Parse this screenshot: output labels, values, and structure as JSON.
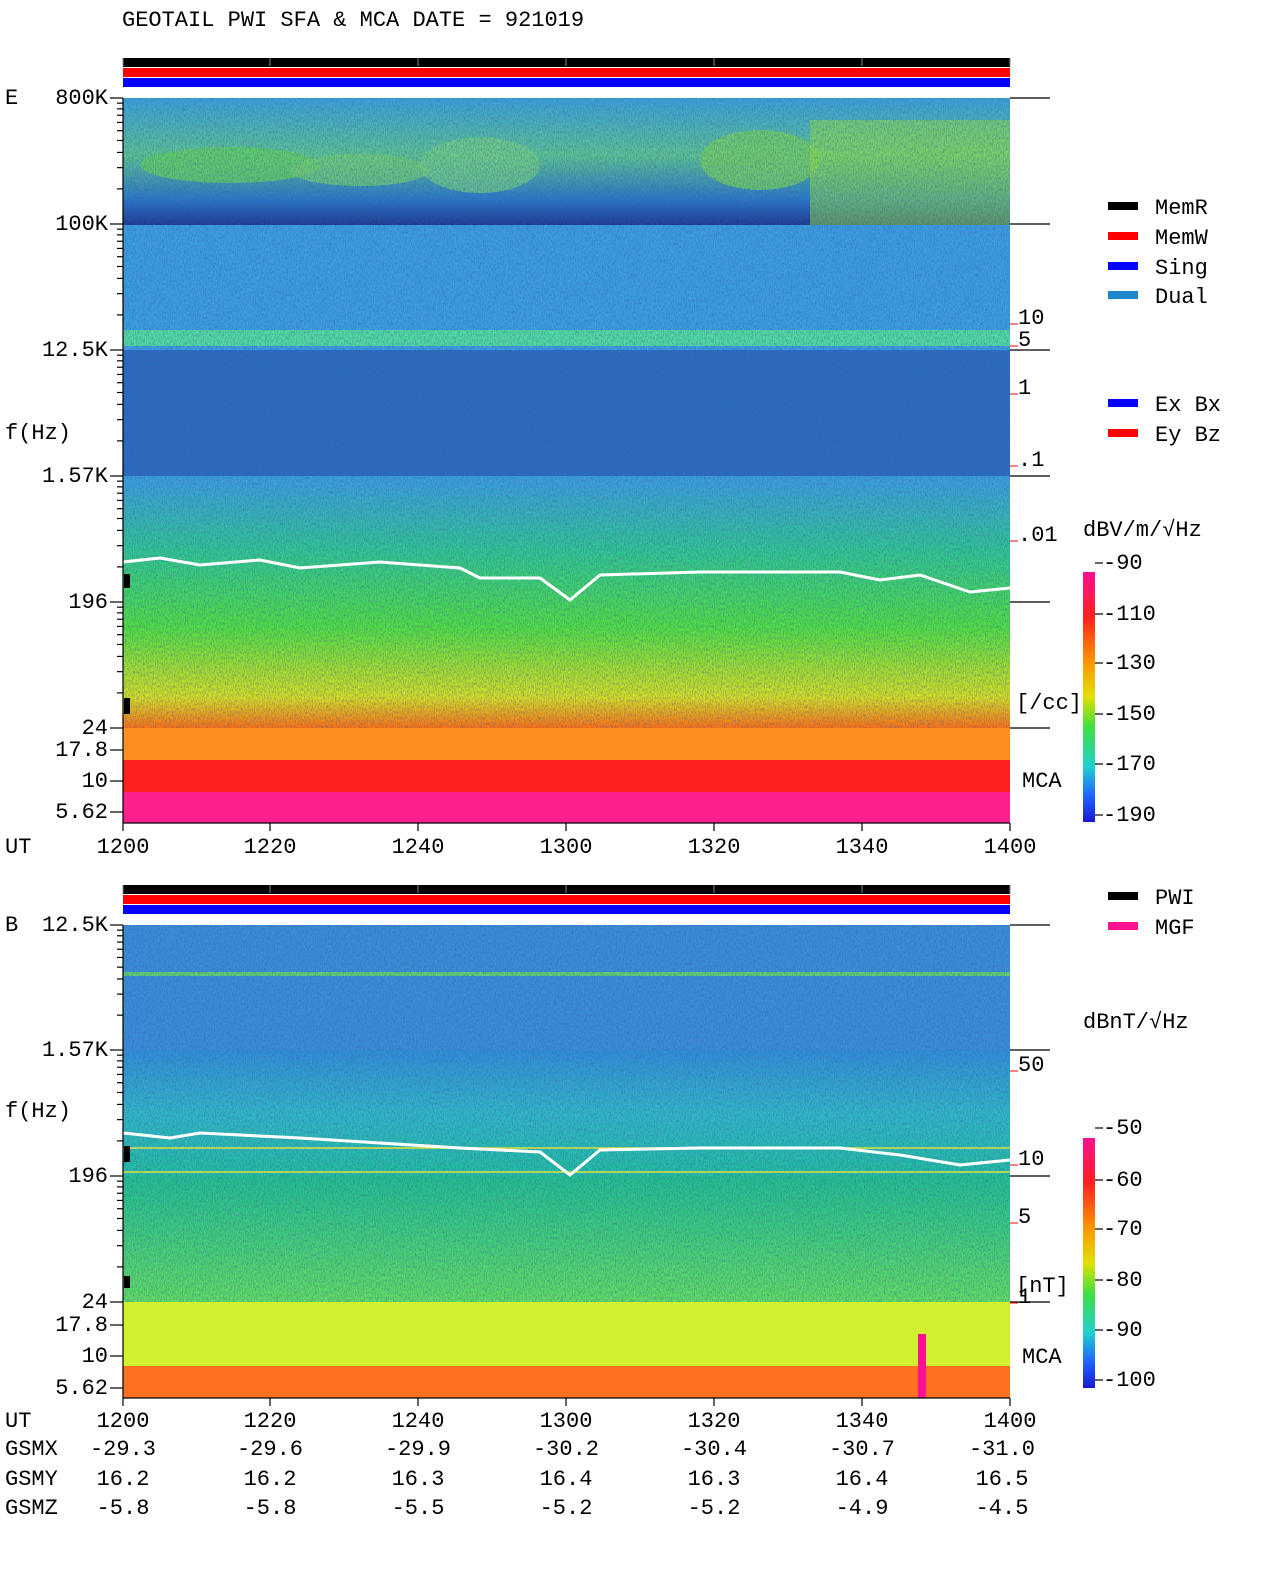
{
  "header": {
    "title": "GEOTAIL  PWI SFA & MCA   DATE = 921019"
  },
  "panels": [
    {
      "label": "E",
      "y_axis_label": "f(Hz)",
      "freq_ticks": [
        "800K",
        "100K",
        "12.5K",
        "1.57K",
        "196",
        "24",
        "17.8",
        "10",
        "5.62"
      ],
      "right_ticks": [
        "10",
        "5",
        "1",
        ".1",
        ".01"
      ],
      "right_unit": "[/cc]",
      "right_color": "#ff0000",
      "mca_label": "MCA",
      "legend": [
        {
          "name": "MemR",
          "color": "#000000"
        },
        {
          "name": "MemW",
          "color": "#ff0000"
        },
        {
          "name": "Sing",
          "color": "#0000ff"
        },
        {
          "name": "Dual",
          "color": "#1e88c8"
        }
      ],
      "legend2": [
        {
          "name": "Ex Bx",
          "color": "#0000ff"
        },
        {
          "name": "Ey Bz",
          "color": "#ff0000"
        }
      ],
      "colorbar": {
        "unit": "dBV/m/√Hz",
        "ticks": [
          "-90",
          "-110",
          "-130",
          "-150",
          "-170",
          "-190"
        ]
      },
      "time_label": "UT",
      "time_ticks": [
        "1200",
        "1220",
        "1240",
        "1300",
        "1320",
        "1340",
        "1400"
      ]
    },
    {
      "label": "B",
      "y_axis_label": "f(Hz)",
      "freq_ticks": [
        "12.5K",
        "1.57K",
        "196",
        "24",
        "17.8",
        "10",
        "5.62"
      ],
      "right_ticks": [
        "50",
        "10",
        "5",
        "1"
      ],
      "right_unit": "[nT]",
      "right_color": "#ff0000",
      "mca_label": "MCA",
      "legend": [
        {
          "name": "PWI",
          "color": "#000000"
        },
        {
          "name": "MGF",
          "color": "#ff1090"
        }
      ],
      "legend2": [],
      "colorbar": {
        "unit": "dBnT/√Hz",
        "ticks": [
          "-50",
          "-60",
          "-70",
          "-80",
          "-90",
          "-100"
        ]
      },
      "time_label": "UT",
      "time_ticks": [
        "1200",
        "1220",
        "1240",
        "1300",
        "1320",
        "1340",
        "1400"
      ]
    }
  ],
  "orbit": {
    "rows": [
      {
        "label": "GSMX",
        "values": [
          "-29.3",
          "-29.6",
          "-29.9",
          "-30.2",
          "-30.4",
          "-30.7",
          "-31.0"
        ]
      },
      {
        "label": "GSMY",
        "values": [
          "16.2",
          "16.2",
          "16.3",
          "16.4",
          "16.3",
          "16.4",
          "16.5"
        ]
      },
      {
        "label": "GSMZ",
        "values": [
          "-5.8",
          "-5.8",
          "-5.5",
          "-5.2",
          "-5.2",
          "-4.9",
          "-4.5"
        ]
      }
    ]
  }
}
